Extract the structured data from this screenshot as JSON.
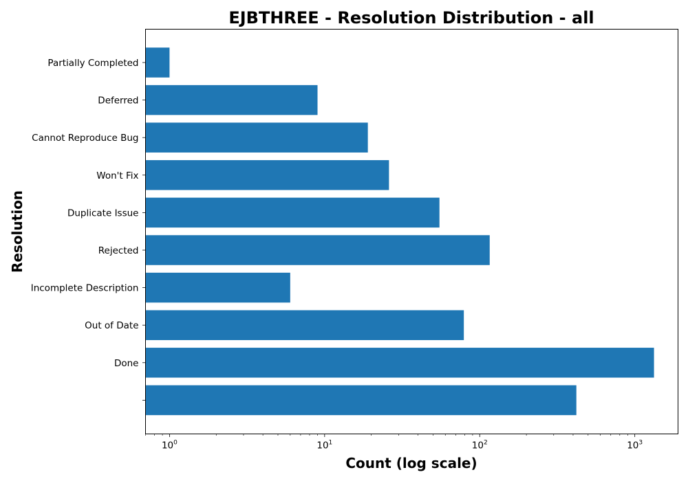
{
  "chart_data": {
    "type": "bar",
    "orientation": "horizontal",
    "title": "EJBTHREE - Resolution Distribution - all",
    "xlabel": "Count (log scale)",
    "ylabel": "Resolution",
    "x_scale": "log",
    "xlim": [
      0.7,
      1900
    ],
    "x_ticks": [
      {
        "value": 1,
        "label": "10",
        "exp": "0"
      },
      {
        "value": 10,
        "label": "10",
        "exp": "1"
      },
      {
        "value": 100,
        "label": "10",
        "exp": "2"
      },
      {
        "value": 1000,
        "label": "10",
        "exp": "3"
      }
    ],
    "grid": false,
    "legend": "none",
    "bar_color": "#1f77b4",
    "categories": [
      "Partially Completed",
      "Deferred",
      "Cannot Reproduce Bug",
      "Won't Fix",
      "Duplicate Issue",
      "Rejected",
      "Incomplete Description",
      "Out of Date",
      "Done",
      ""
    ],
    "values": [
      1,
      9,
      19,
      26,
      55,
      116,
      6,
      79,
      1330,
      420
    ]
  }
}
